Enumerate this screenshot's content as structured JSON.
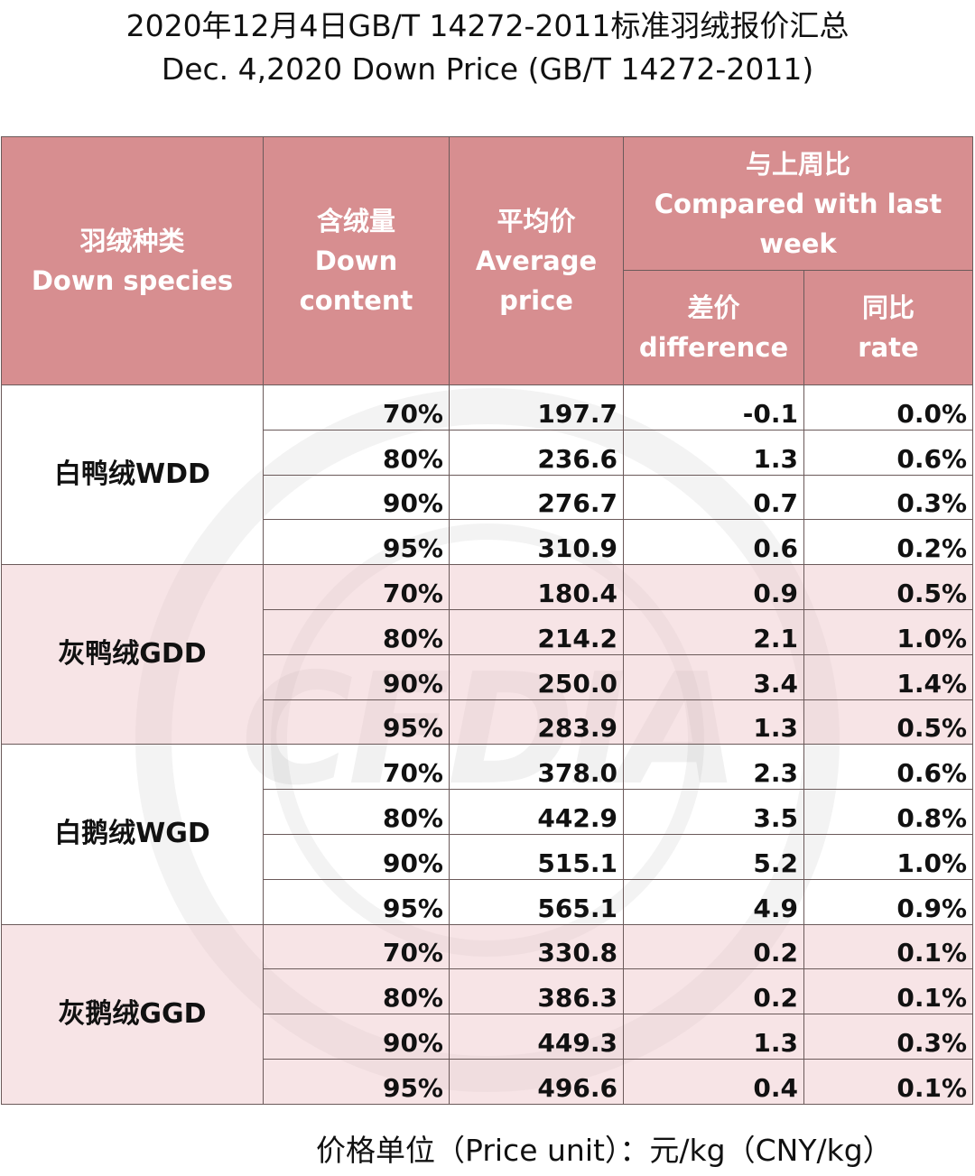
{
  "title": {
    "line1": "2020年12月4日GB/T 14272-2011标准羽绒报价汇总",
    "line2": "Dec. 4,2020 Down Price (GB/T 14272-2011)"
  },
  "headers": {
    "species_cn": "羽绒种类",
    "species_en": "Down species",
    "content_cn": "含绒量",
    "content_en1": "Down",
    "content_en2": "content",
    "avg_cn": "平均价",
    "avg_en1": "Average",
    "avg_en2": "price",
    "compare_cn": "与上周比",
    "compare_en1": "Compared with last",
    "compare_en2": "week",
    "diff_cn": "差价",
    "diff_en": "difference",
    "rate_cn": "同比",
    "rate_en": "rate"
  },
  "groups": [
    {
      "species": "白鸭绒WDD",
      "rows": [
        {
          "content": "70%",
          "price": "197.7",
          "diff": "-0.1",
          "rate": "0.0%"
        },
        {
          "content": "80%",
          "price": "236.6",
          "diff": "1.3",
          "rate": "0.6%"
        },
        {
          "content": "90%",
          "price": "276.7",
          "diff": "0.7",
          "rate": "0.3%"
        },
        {
          "content": "95%",
          "price": "310.9",
          "diff": "0.6",
          "rate": "0.2%"
        }
      ]
    },
    {
      "species": "灰鸭绒GDD",
      "rows": [
        {
          "content": "70%",
          "price": "180.4",
          "diff": "0.9",
          "rate": "0.5%"
        },
        {
          "content": "80%",
          "price": "214.2",
          "diff": "2.1",
          "rate": "1.0%"
        },
        {
          "content": "90%",
          "price": "250.0",
          "diff": "3.4",
          "rate": "1.4%"
        },
        {
          "content": "95%",
          "price": "283.9",
          "diff": "1.3",
          "rate": "0.5%"
        }
      ]
    },
    {
      "species": "白鹅绒WGD",
      "rows": [
        {
          "content": "70%",
          "price": "378.0",
          "diff": "2.3",
          "rate": "0.6%"
        },
        {
          "content": "80%",
          "price": "442.9",
          "diff": "3.5",
          "rate": "0.8%"
        },
        {
          "content": "90%",
          "price": "515.1",
          "diff": "5.2",
          "rate": "1.0%"
        },
        {
          "content": "95%",
          "price": "565.1",
          "diff": "4.9",
          "rate": "0.9%"
        }
      ]
    },
    {
      "species": "灰鹅绒GGD",
      "rows": [
        {
          "content": "70%",
          "price": "330.8",
          "diff": "0.2",
          "rate": "0.1%"
        },
        {
          "content": "80%",
          "price": "386.3",
          "diff": "0.2",
          "rate": "0.1%"
        },
        {
          "content": "90%",
          "price": "449.3",
          "diff": "1.3",
          "rate": "0.3%"
        },
        {
          "content": "95%",
          "price": "496.6",
          "diff": "0.4",
          "rate": "0.1%"
        }
      ]
    }
  ],
  "unit_note": "价格单位（Price unit）：元/kg（CNY/kg）",
  "watermark_text": "CFDIA",
  "colors": {
    "header_bg": "#d78e90",
    "band_bg": "#f0d2d5",
    "positive": "#e01f1f",
    "negative": "#1a9a3a"
  }
}
